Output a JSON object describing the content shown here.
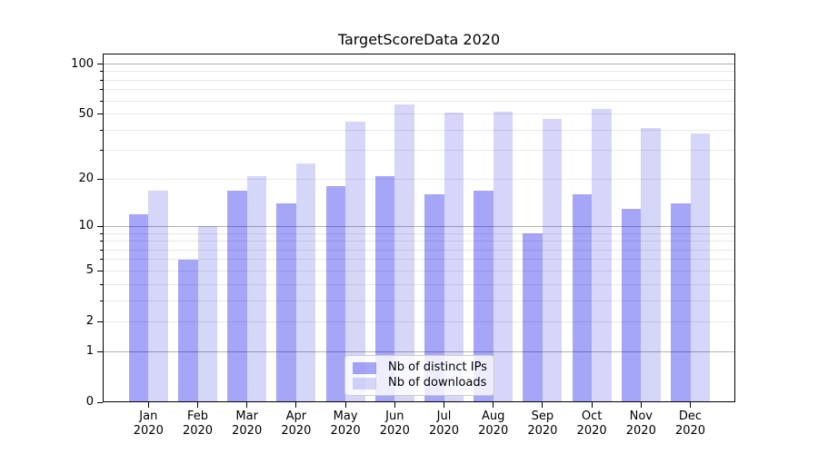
{
  "title": "TargetScoreData 2020",
  "colors": {
    "bar_distinct_ips": "rgba(0,0,235,0.35)",
    "bar_downloads": "rgba(0,0,215,0.16)",
    "grid_major": "#b0b0b0",
    "grid_minor": "#e8e8e8",
    "spine": "#000000",
    "legend_border": "#cccccc"
  },
  "legend": {
    "items": [
      "Nb of distinct IPs",
      "Nb of downloads"
    ]
  },
  "y_axis": {
    "tick_labels": [
      "100",
      "50",
      "20",
      "10",
      "5",
      "2",
      "1",
      "0"
    ],
    "tick_values": [
      100,
      50,
      20,
      10,
      5,
      2,
      1,
      0
    ]
  },
  "x_axis": {
    "months": [
      "Jan",
      "Feb",
      "Mar",
      "Apr",
      "May",
      "Jun",
      "Jul",
      "Aug",
      "Sep",
      "Oct",
      "Nov",
      "Dec"
    ],
    "year": "2020"
  },
  "chart_data": {
    "type": "bar",
    "title": "TargetScoreData 2020",
    "categories": [
      "Jan 2020",
      "Feb 2020",
      "Mar 2020",
      "Apr 2020",
      "May 2020",
      "Jun 2020",
      "Jul 2020",
      "Aug 2020",
      "Sep 2020",
      "Oct 2020",
      "Nov 2020",
      "Dec 2020"
    ],
    "series": [
      {
        "name": "Nb of distinct IPs",
        "color": "rgba(0,0,235,0.35)",
        "values": [
          12,
          6,
          17,
          14,
          18,
          21,
          16,
          17,
          9,
          16,
          13,
          14
        ]
      },
      {
        "name": "Nb of downloads",
        "color": "rgba(0,0,215,0.16)",
        "values": [
          17,
          10,
          21,
          25,
          45,
          57,
          51,
          52,
          47,
          54,
          41,
          38
        ]
      }
    ],
    "yscale": "log1p",
    "ylim": [
      0,
      115.5
    ],
    "y_ticks": [
      0,
      1,
      2,
      5,
      10,
      20,
      50,
      100
    ],
    "y_major_grid": [
      1,
      10,
      100
    ],
    "y_minor_grid": [
      2,
      3,
      4,
      5,
      6,
      7,
      8,
      9,
      20,
      30,
      40,
      50,
      60,
      70,
      80,
      90
    ],
    "grid": true,
    "legend_position": "lower center"
  }
}
